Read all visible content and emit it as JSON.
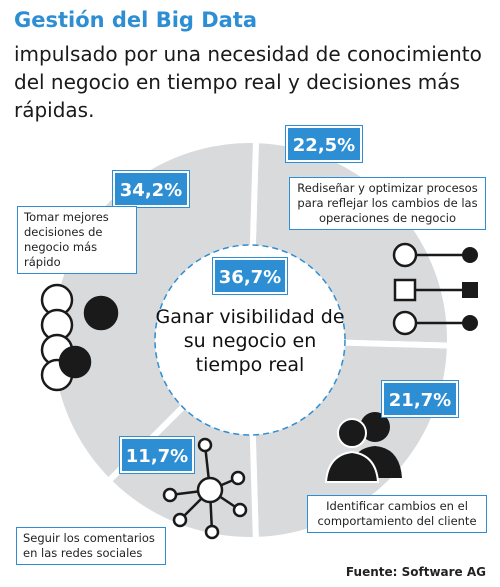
{
  "title": "Gestión del Big Data",
  "subtitle": "impulsado por una necesidad de conocimiento del negocio en tiempo real y decisiones  más rápidas.",
  "source": "Fuente: Software AG",
  "colors": {
    "accent": "#2d8ed3",
    "ring": "#d9dadc",
    "center": "#ffffff",
    "dark": "#1a1a1a"
  },
  "chart_data": {
    "type": "pie",
    "title": "Gestión del Big Data",
    "center": {
      "value": 36.7,
      "value_label": "36,7%",
      "label": "Ganar visibilidad de su negocio en tiempo real"
    },
    "slices": [
      {
        "value": 22.5,
        "value_label": "22,5%",
        "label": "Rediseñar y optimizar procesos para reflejar los cambios de las operaciones de negocio"
      },
      {
        "value": 21.7,
        "value_label": "21,7%",
        "label": "Identificar cambios en el comportamiento del cliente"
      },
      {
        "value": 11.7,
        "value_label": "11,7%",
        "label": "Seguir los comentarios en las redes sociales"
      },
      {
        "value": 34.2,
        "value_label": "34,2%",
        "label": "Tomar mejores decisiones de negocio más rápido"
      }
    ]
  }
}
